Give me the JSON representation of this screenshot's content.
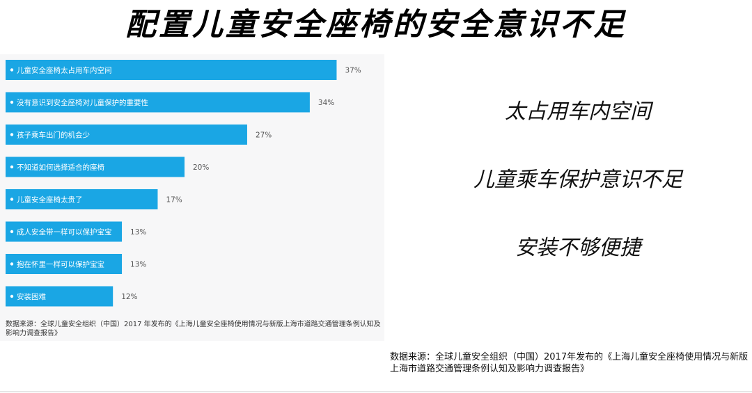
{
  "title": "配置儿童安全座椅的安全意识不足",
  "chart_data": {
    "type": "bar",
    "orientation": "horizontal",
    "categories": [
      "儿童安全座椅太占用车内空间",
      "没有意识到安全座椅对儿童保护的重要性",
      "孩子乘车出门的机会少",
      "不知道如何选择适合的座椅",
      "儿童安全座椅太贵了",
      "成人安全带一样可以保护宝宝",
      "抱在怀里一样可以保护宝宝",
      "安装困难"
    ],
    "values": [
      37,
      34,
      27,
      20,
      17,
      13,
      13,
      12
    ],
    "value_labels": [
      "37%",
      "34%",
      "27%",
      "20%",
      "17%",
      "13%",
      "13%",
      "12%"
    ],
    "xlim": [
      0,
      40
    ],
    "unit": "%",
    "bar_color": "#1aa6e4",
    "source": "数据来源：全球儿童安全组织（中国）2017 年发布的《上海儿童安全座椅使用情况与新版上海市道路交通管理条例认知及影响力调查报告》"
  },
  "key_points": [
    "太占用车内空间",
    "儿童乘车保护意识不足",
    "安装不够便捷"
  ],
  "footnote": "数据来源：全球儿童安全组织（中国）2017年发布的《上海儿童安全座椅使用情况与新版上海市道路交通管理条例认知及影响力调查报告》"
}
